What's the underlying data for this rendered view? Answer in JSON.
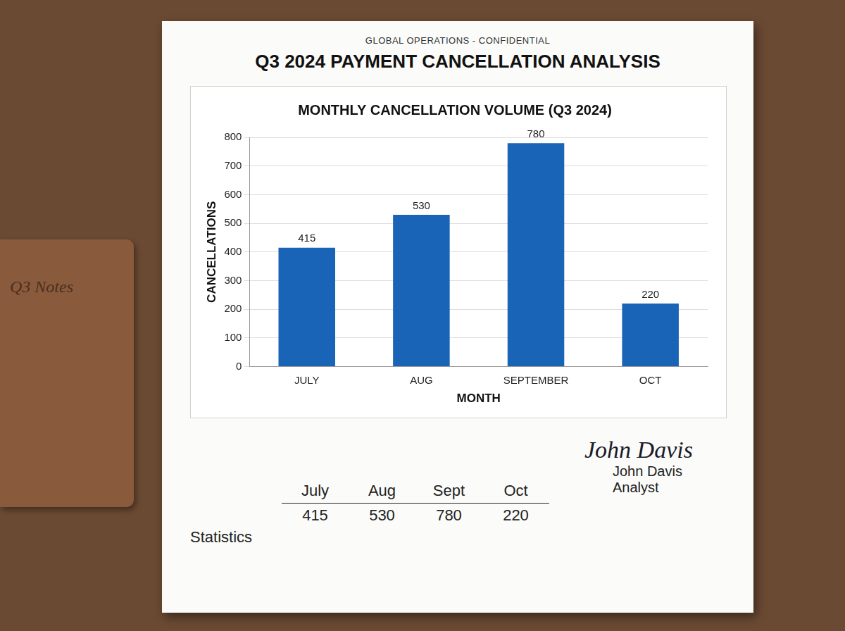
{
  "header": {
    "label": "GLOBAL OPERATIONS - CONFIDENTIAL",
    "title": "Q3 2024 PAYMENT CANCELLATION ANALYSIS"
  },
  "chart_data": {
    "type": "bar",
    "title": "MONTHLY CANCELLATION VOLUME (Q3 2024)",
    "x_label": "MONTH",
    "y_label": "CANCELLATIONS",
    "categories": [
      "JULY",
      "AUG",
      "SEPTEMBER",
      "OCT"
    ],
    "values": [
      415,
      530,
      780,
      220
    ],
    "color": "#1a64b8",
    "ylim": [
      0,
      800
    ],
    "yticks": [
      0,
      100,
      200,
      300,
      400,
      500,
      600,
      700,
      800
    ],
    "grid": true,
    "data_labels": true
  },
  "statistics": {
    "label": "Statistics",
    "columns": [
      "July",
      "Aug",
      "Sept",
      "Oct"
    ],
    "values": [
      415,
      530,
      780,
      220
    ]
  },
  "signature": {
    "script": "John Davis",
    "name": "John Davis",
    "role": "Analyst"
  },
  "notebook": {
    "label": "Q3 Notes"
  }
}
